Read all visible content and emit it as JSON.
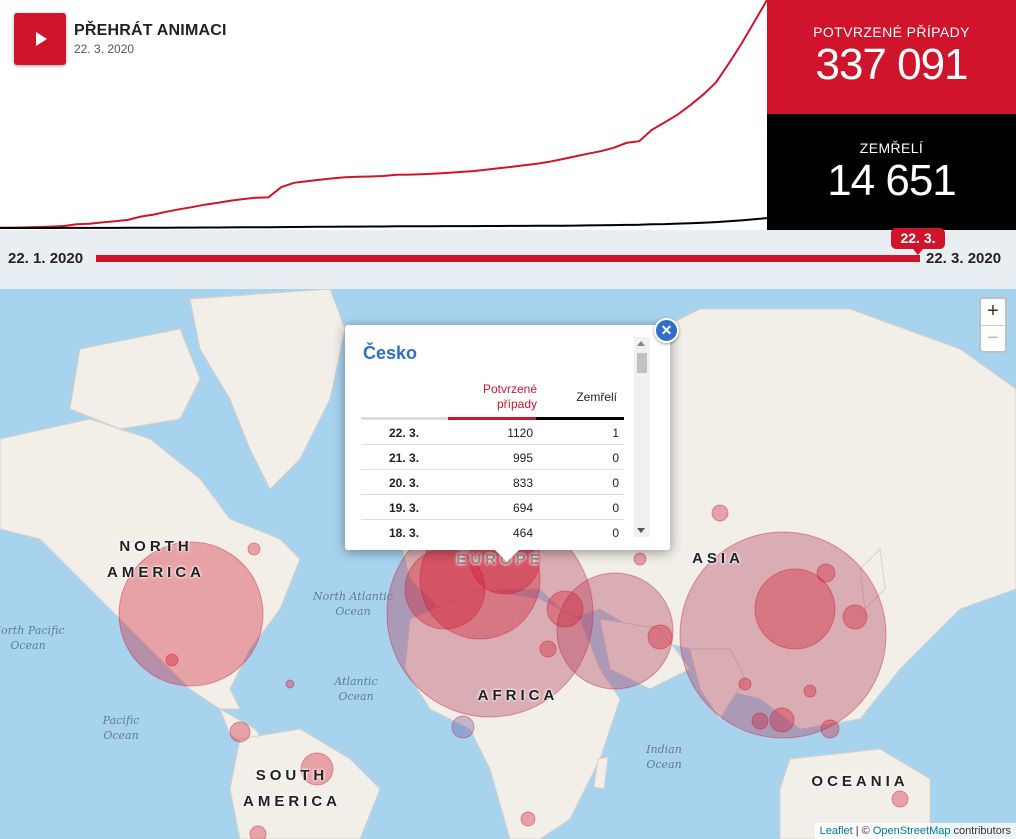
{
  "play": {
    "label": "PŘEHRÁT ANIMACI",
    "date": "22. 3. 2020"
  },
  "stats": {
    "confirmed_label": "POTVRZENÉ PŘÍPADY",
    "confirmed_value": "337 091",
    "deaths_label": "ZEMŘELÍ",
    "deaths_value": "14 651"
  },
  "timeline": {
    "start": "22. 1. 2020",
    "end": "22. 3. 2020",
    "current": "22. 3.",
    "progress": 1.0
  },
  "chart_data": {
    "type": "line",
    "x_range": [
      "2020-01-22",
      "2020-03-22"
    ],
    "series": [
      {
        "color": "#d0142c",
        "values": [
          555,
          654,
          941,
          1434,
          2118,
          2927,
          5578,
          6166,
          8234,
          9927,
          12038,
          16787,
          19881,
          23892,
          27636,
          30818,
          34392,
          37121,
          40151,
          42763,
          44803,
          45222,
          60370,
          66887,
          69032,
          71226,
          73260,
          75138,
          75641,
          76199,
          76843,
          78599,
          78985,
          79570,
          80415,
          81397,
          82756,
          84124,
          86013,
          88371,
          90309,
          92844,
          95124,
          98013,
          101809,
          105795,
          109826,
          113570,
          118582,
          125865,
          128343,
          145193,
          156097,
          167449,
          181531,
          197146,
          214910,
          242708,
          272166,
          304524,
          337091
        ]
      },
      {
        "color": "#000000",
        "values": [
          17,
          18,
          26,
          42,
          56,
          82,
          131,
          133,
          171,
          213,
          259,
          362,
          426,
          492,
          564,
          634,
          719,
          806,
          906,
          1013,
          1113,
          1118,
          1371,
          1523,
          1666,
          1770,
          1868,
          2007,
          2122,
          2247,
          2251,
          2458,
          2469,
          2629,
          2708,
          2770,
          2814,
          2872,
          2941,
          2996,
          3085,
          3160,
          3254,
          3348,
          3460,
          3558,
          3802,
          3988,
          4262,
          4615,
          4720,
          5404,
          5819,
          6440,
          7126,
          7905,
          8733,
          9867,
          11299,
          12973,
          14651
        ]
      }
    ]
  },
  "map": {
    "continents": [
      "NORTH AMERICA",
      "EUROPE",
      "ASIA",
      "AFRICA",
      "SOUTH AMERICA",
      "OCEANIA"
    ],
    "oceans": [
      "North Atlantic Ocean",
      "Atlantic Ocean",
      "Pacific Ocean",
      "North Pacific Ocean",
      "Indian Ocean"
    ],
    "zoom_in": "+",
    "zoom_out": "−",
    "attribution": {
      "leaflet": "Leaflet",
      "sep": " | © ",
      "osm": "OpenStreetMap",
      "suffix": " contributors"
    }
  },
  "popup": {
    "title": "Česko",
    "close": "✕",
    "col_confirmed": "Potvrzené případy",
    "col_deaths": "Zemřelí",
    "rows": [
      {
        "date": "22. 3.",
        "confirmed": "1120",
        "deaths": "1"
      },
      {
        "date": "21. 3.",
        "confirmed": "995",
        "deaths": "0"
      },
      {
        "date": "20. 3.",
        "confirmed": "833",
        "deaths": "0"
      },
      {
        "date": "19. 3.",
        "confirmed": "694",
        "deaths": "0"
      },
      {
        "date": "18. 3.",
        "confirmed": "464",
        "deaths": "0"
      }
    ]
  }
}
